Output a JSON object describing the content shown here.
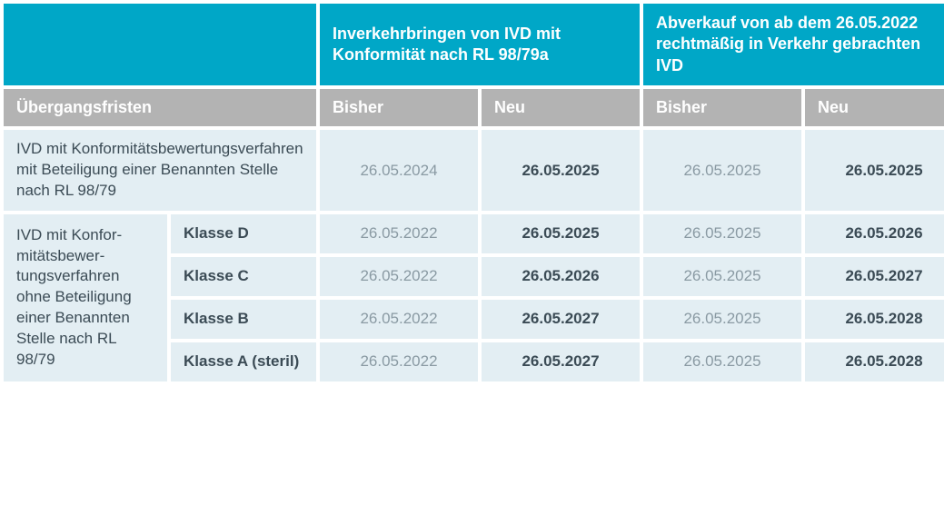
{
  "table": {
    "type": "table",
    "colors": {
      "teal": "#00a7c7",
      "gray_header": "#b3b3b3",
      "cell_bg": "#e3eef3",
      "text_dark": "#3b4b55",
      "text_muted": "#8a9aa3",
      "white": "#ffffff"
    },
    "fonts": {
      "header_size_pt": 14,
      "body_size_pt": 13
    },
    "header1": {
      "col_group_1": "Inverkehrbringen von IVD mit Konformität nach RL 98/79a",
      "col_group_2": "Abverkauf von ab dem 26.05.2022 rechtmäßig in Verkehr gebrachten IVD"
    },
    "header2": {
      "rowlabel": "Übergangsfristen",
      "bisher": "Bisher",
      "neu": "Neu"
    },
    "rows": [
      {
        "label_full": "IVD mit Konformitätsbewertungs­verfahren mit Beteiligung einer Benannten Stelle nach RL 98/79",
        "d1_bisher": "26.05.2024",
        "d1_neu": "26.05.2025",
        "d2_bisher": "26.05.2025",
        "d2_neu": "26.05.2025"
      }
    ],
    "group": {
      "label": "IVD mit Konfor­mitätsbewer­tungsverfahren ohne Beteili­gung einer Be­nannten Stelle nach RL 98/79",
      "rows": [
        {
          "klass": "Klasse D",
          "d1_bisher": "26.05.2022",
          "d1_neu": "26.05.2025",
          "d2_bisher": "26.05.2025",
          "d2_neu": "26.05.2026"
        },
        {
          "klass": "Klasse C",
          "d1_bisher": "26.05.2022",
          "d1_neu": "26.05.2026",
          "d2_bisher": "26.05.2025",
          "d2_neu": "26.05.2027"
        },
        {
          "klass": "Klasse B",
          "d1_bisher": "26.05.2022",
          "d1_neu": "26.05.2027",
          "d2_bisher": "26.05.2025",
          "d2_neu": "26.05.2028"
        },
        {
          "klass": "Klasse A (steril)",
          "d1_bisher": "26.05.2022",
          "d1_neu": "26.05.2027",
          "d2_bisher": "26.05.2025",
          "d2_neu": "26.05.2028"
        }
      ]
    }
  }
}
